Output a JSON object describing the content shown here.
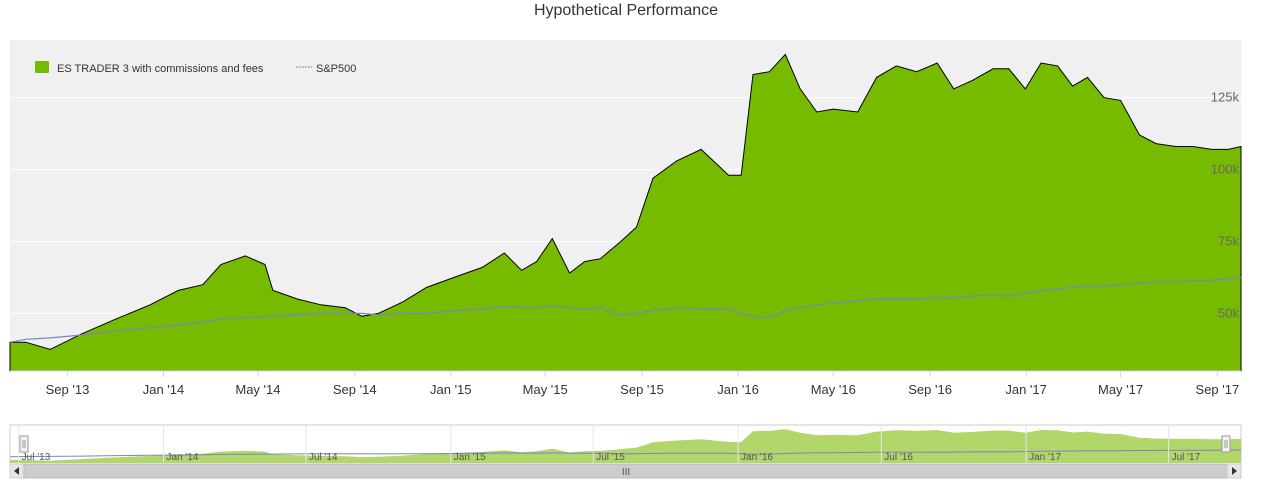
{
  "chart_data": {
    "type": "area",
    "title": "Hypothetical Performance",
    "legend": {
      "position": "top-left"
    },
    "colors": {
      "strategy": "#77bb00",
      "benchmark": "#8080c8",
      "plot_bg": "#f0f0f0",
      "navigator_fill": "#a3d050"
    },
    "x_ticks": [
      "Sep '13",
      "Jan '14",
      "May '14",
      "Sep '14",
      "Jan '15",
      "May '15",
      "Sep '15",
      "Jan '16",
      "May '16",
      "Sep '16",
      "Jan '17",
      "May '17",
      "Sep '17"
    ],
    "y_ticks": [
      "50k",
      "75k",
      "100k",
      "125k"
    ],
    "ylim": [
      30000,
      145000
    ],
    "x_dates": [
      "2013-06-20",
      "2013-07-10",
      "2013-08-10",
      "2013-09-20",
      "2013-11-01",
      "2013-12-15",
      "2014-01-20",
      "2014-02-20",
      "2014-03-15",
      "2014-04-15",
      "2014-05-10",
      "2014-05-20",
      "2014-06-20",
      "2014-07-20",
      "2014-08-20",
      "2014-09-10",
      "2014-10-01",
      "2014-11-01",
      "2014-12-01",
      "2015-01-10",
      "2015-02-10",
      "2015-03-10",
      "2015-04-01",
      "2015-04-20",
      "2015-05-10",
      "2015-06-01",
      "2015-06-20",
      "2015-07-10",
      "2015-08-05",
      "2015-08-25",
      "2015-09-15",
      "2015-10-15",
      "2015-11-15",
      "2015-12-20",
      "2016-01-05",
      "2016-01-20",
      "2016-02-10",
      "2016-03-01",
      "2016-03-20",
      "2016-04-10",
      "2016-05-01",
      "2016-06-01",
      "2016-06-25",
      "2016-07-20",
      "2016-08-15",
      "2016-09-10",
      "2016-10-01",
      "2016-10-25",
      "2016-11-20",
      "2016-12-10",
      "2016-12-31",
      "2017-01-20",
      "2017-02-10",
      "2017-03-01",
      "2017-03-20",
      "2017-04-10",
      "2017-05-01",
      "2017-05-25",
      "2017-06-15",
      "2017-07-10",
      "2017-08-01",
      "2017-08-25",
      "2017-09-15",
      "2017-10-01"
    ],
    "series": [
      {
        "name": "ES TRADER 3 with commissions and fees",
        "values": [
          40000,
          40000,
          37500,
          43000,
          48000,
          53000,
          58000,
          60000,
          67000,
          70000,
          67000,
          58000,
          55000,
          53000,
          52000,
          49000,
          50000,
          54000,
          59000,
          63000,
          66000,
          71000,
          65000,
          68000,
          76000,
          64000,
          68000,
          69000,
          75000,
          80000,
          97000,
          103000,
          107000,
          98000,
          98000,
          133000,
          134000,
          140000,
          128000,
          120000,
          121000,
          120000,
          132000,
          136000,
          134000,
          137000,
          128000,
          131000,
          135000,
          135000,
          128000,
          137000,
          136000,
          129000,
          132000,
          125000,
          124000,
          112000,
          109000,
          108000,
          108000,
          107000,
          107000,
          108000
        ]
      },
      {
        "name": "S&P500",
        "values": [
          40000,
          41000,
          41500,
          42500,
          44000,
          45000,
          46000,
          47000,
          48000,
          48500,
          49000,
          49000,
          49500,
          50000,
          50000,
          50000,
          49500,
          50000,
          50000,
          51000,
          51500,
          52500,
          52000,
          52000,
          52500,
          52000,
          51500,
          52000,
          49500,
          50000,
          51000,
          52000,
          51500,
          51500,
          50000,
          49000,
          48500,
          51000,
          52000,
          53000,
          53500,
          54500,
          55000,
          55000,
          55000,
          55500,
          55500,
          56000,
          56500,
          56000,
          57000,
          58000,
          58500,
          59000,
          59500,
          59500,
          60000,
          60500,
          61000,
          61000,
          61500,
          61500,
          62000,
          62500
        ]
      }
    ],
    "navigator": {
      "ticks": [
        "Jul '13",
        "Jan '14",
        "Jul '14",
        "Jan '15",
        "Jul '15",
        "Jan '16",
        "Jul '16",
        "Jan '17",
        "Jul '17"
      ],
      "scrollbar_grip": "III"
    }
  }
}
